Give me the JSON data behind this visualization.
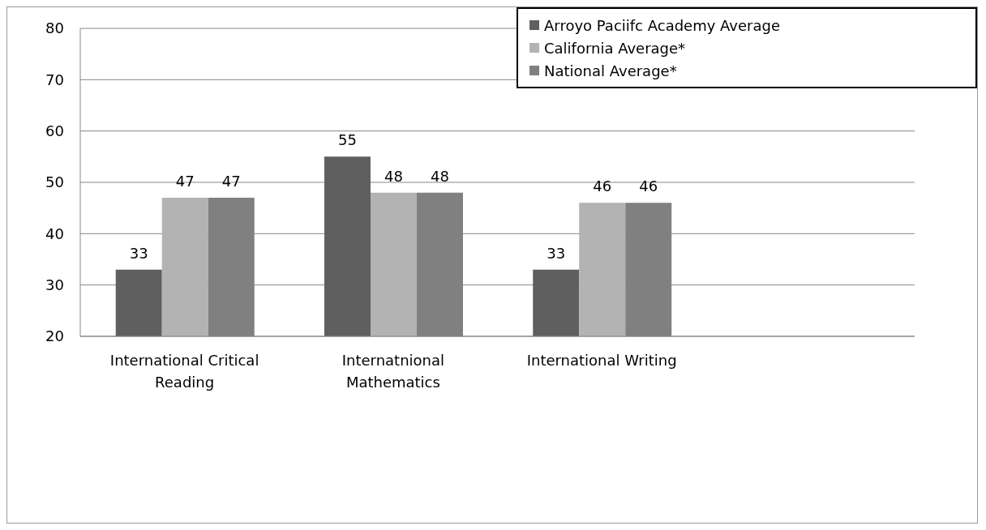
{
  "chart_data": {
    "type": "bar",
    "categories": [
      "International Critical Reading",
      "Internatnional Mathematics",
      "International Writing",
      null
    ],
    "series": [
      {
        "name": "Arroyo Paciifc Academy Average",
        "color": "#5f5f5f",
        "values": [
          33,
          55,
          33,
          null
        ]
      },
      {
        "name": "California Average*",
        "color": "#b3b3b3",
        "values": [
          47,
          48,
          46,
          null
        ]
      },
      {
        "name": "National Average*",
        "color": "#808080",
        "values": [
          47,
          48,
          46,
          null
        ]
      }
    ],
    "ylim": [
      20,
      80
    ],
    "yticks": [
      20,
      30,
      40,
      50,
      60,
      70,
      80
    ],
    "grid": "y",
    "legend": "top right",
    "data_labels": true
  }
}
